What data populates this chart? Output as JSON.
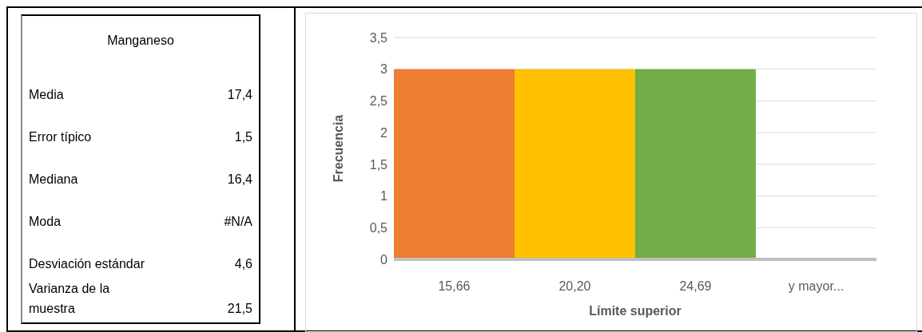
{
  "chart_data": [
    {
      "type": "other",
      "title": "Manganeso",
      "categories": [
        "Media",
        "Error típico",
        "Mediana",
        "Moda",
        "Desviación estándar",
        "Varianza de la muestra"
      ],
      "value_labels": [
        "17,4",
        "1,5",
        "16,4",
        "#N/A",
        "4,6",
        "21,5"
      ]
    },
    {
      "type": "bar",
      "xlabel": "Límite superior",
      "ylabel": "Frecuencia",
      "categories": [
        "15,66",
        "20,20",
        "24,69",
        "y mayor..."
      ],
      "values": [
        3,
        3,
        3,
        0
      ],
      "colors": [
        "#ed7d31",
        "#ffc000",
        "#70ad47",
        "#4472c4"
      ],
      "ylim": [
        0,
        3.5
      ],
      "yticks": [
        0,
        {
          "value": 0.5,
          "label": "0,5"
        },
        1,
        {
          "value": 1.5,
          "label": "1,5"
        },
        2,
        {
          "value": 2.5,
          "label": "2,5"
        },
        3,
        {
          "value": 3.5,
          "label": "3,5"
        }
      ],
      "grid": "y"
    }
  ]
}
